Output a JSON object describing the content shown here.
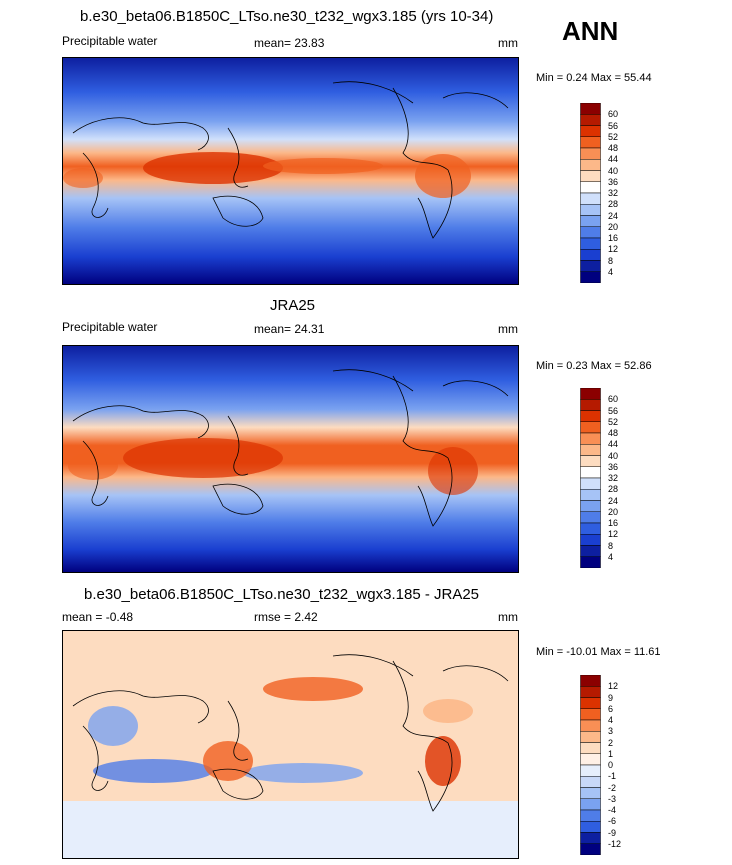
{
  "season": "ANN",
  "panels": [
    {
      "title": "b.e30_beta06.B1850C_LTso.ne30_t232_wgx3.185 (yrs 10-34)",
      "left_label": "Precipitable water",
      "center_label": "mean=  23.83",
      "units": "mm",
      "minmax": "Min =   0.24 Max =  55.44",
      "colorbar": {
        "levels": [
          "60",
          "56",
          "52",
          "48",
          "44",
          "40",
          "36",
          "32",
          "28",
          "24",
          "20",
          "16",
          "12",
          "8",
          "4"
        ],
        "colors": [
          "#8b0000",
          "#b51a00",
          "#dc3200",
          "#f06020",
          "#f98f55",
          "#fcb889",
          "#fddcc0",
          "#ffffff",
          "#d0e0fb",
          "#a6c3f6",
          "#7aa2f0",
          "#4f7de8",
          "#2f5ee0",
          "#1a3fd0",
          "#0d1fa0",
          "#00007f"
        ]
      }
    },
    {
      "title": "JRA25",
      "left_label": "Precipitable water",
      "center_label": "mean=  24.31",
      "units": "mm",
      "minmax": "Min =   0.23 Max =  52.86",
      "colorbar": {
        "levels": [
          "60",
          "56",
          "52",
          "48",
          "44",
          "40",
          "36",
          "32",
          "28",
          "24",
          "20",
          "16",
          "12",
          "8",
          "4"
        ],
        "colors": [
          "#8b0000",
          "#b51a00",
          "#dc3200",
          "#f06020",
          "#f98f55",
          "#fcb889",
          "#fddcc0",
          "#ffffff",
          "#d0e0fb",
          "#a6c3f6",
          "#7aa2f0",
          "#4f7de8",
          "#2f5ee0",
          "#1a3fd0",
          "#0d1fa0",
          "#00007f"
        ]
      }
    },
    {
      "title": "b.e30_beta06.B1850C_LTso.ne30_t232_wgx3.185 - JRA25",
      "left_label": "mean =  -0.48",
      "center_label": "rmse =   2.42",
      "units": "mm",
      "minmax": "Min = -10.01 Max =  11.61",
      "colorbar": {
        "levels": [
          "12",
          "9",
          "6",
          "4",
          "3",
          "2",
          "1",
          "0",
          "-1",
          "-2",
          "-3",
          "-4",
          "-6",
          "-9",
          "-12"
        ],
        "colors": [
          "#8b0000",
          "#b51a00",
          "#dc3200",
          "#f06020",
          "#f98f55",
          "#fcb889",
          "#fddcc0",
          "#fff0e6",
          "#e6eefc",
          "#c8d8f8",
          "#a6c3f6",
          "#7aa2f0",
          "#4f7de8",
          "#2f5ee0",
          "#0d1fa0",
          "#00007f"
        ]
      }
    }
  ]
}
